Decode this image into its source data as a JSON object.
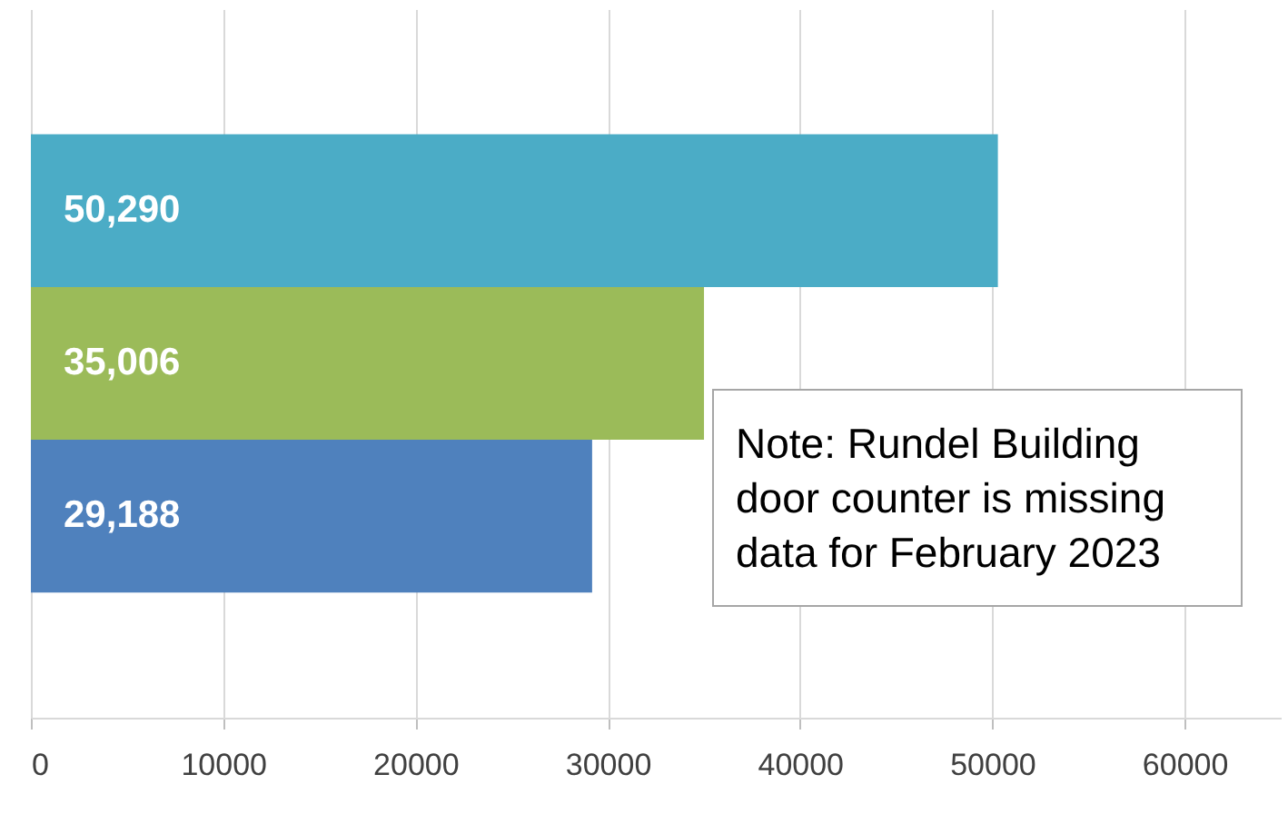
{
  "chart_data": {
    "type": "bar",
    "orientation": "horizontal",
    "categories": [
      null,
      null,
      null
    ],
    "values": [
      50290,
      35006,
      29188
    ],
    "colors": [
      "#4bacc6",
      "#9bbb59",
      "#4f81bd"
    ],
    "value_labels": [
      "50,290",
      "35,006",
      "29,188"
    ],
    "xlim": [
      0,
      65000
    ],
    "xticks": [
      0,
      10000,
      20000,
      30000,
      40000,
      50000,
      60000
    ],
    "grid": "x",
    "annotations": [
      "Note: Rundel Building door counter is missing data for February 2023"
    ]
  }
}
